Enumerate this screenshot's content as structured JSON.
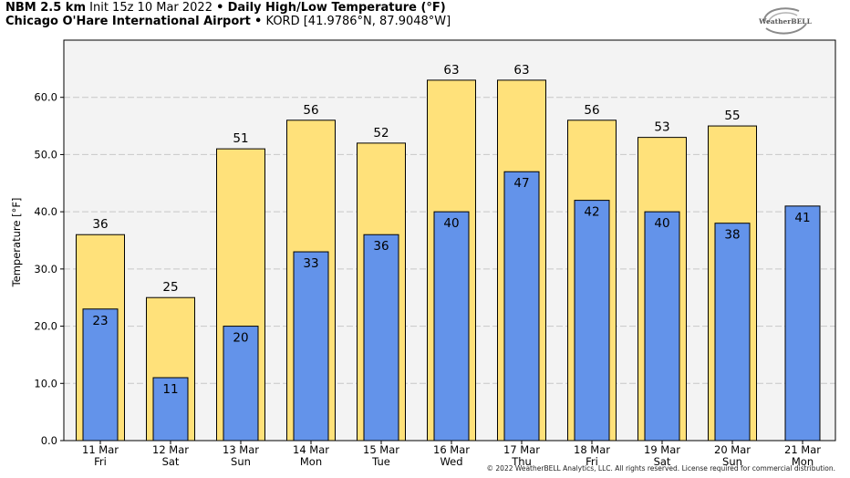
{
  "header": {
    "line1_model": "NBM 2.5 km",
    "line1_init": "Init 15z 10 Mar 2022",
    "line1_sep": "•",
    "line1_product": "Daily High/Low Temperature (°F)",
    "line2_station": "Chicago O'Hare International Airport",
    "line2_sep": "•",
    "line2_coords": "KORD [41.9786°N, 87.9048°W]"
  },
  "logo": {
    "text": "WeatherBELL"
  },
  "copyright": "© 2022 WeatherBELL Analytics, LLC. All rights reserved. License required for commercial distribution.",
  "colors": {
    "high": "#ffe17a",
    "low": "#6393ea",
    "grid": "#c8c8c8",
    "plot_bg": "#f3f3f3"
  },
  "chart_data": {
    "type": "bar",
    "ylabel": "Temperature [°F]",
    "ylim": [
      0,
      70
    ],
    "yticks": [
      "0.0",
      "10.0",
      "20.0",
      "30.0",
      "40.0",
      "50.0",
      "60.0"
    ],
    "ytick_values": [
      0,
      10,
      20,
      30,
      40,
      50,
      60
    ],
    "grid": true,
    "categories": [
      [
        "11 Mar",
        "Fri"
      ],
      [
        "12 Mar",
        "Sat"
      ],
      [
        "13 Mar",
        "Sun"
      ],
      [
        "14 Mar",
        "Mon"
      ],
      [
        "15 Mar",
        "Tue"
      ],
      [
        "16 Mar",
        "Wed"
      ],
      [
        "17 Mar",
        "Thu"
      ],
      [
        "18 Mar",
        "Fri"
      ],
      [
        "19 Mar",
        "Sat"
      ],
      [
        "20 Mar",
        "Sun"
      ],
      [
        "21 Mar",
        "Mon"
      ]
    ],
    "series": [
      {
        "values": [
          36,
          25,
          51,
          56,
          52,
          63,
          63,
          56,
          53,
          55,
          null
        ],
        "labels": [
          "36",
          "25",
          "51",
          "56",
          "52",
          "63",
          "63",
          "56",
          "53",
          "55",
          ""
        ]
      },
      {
        "values": [
          23,
          11,
          20,
          33,
          36,
          40,
          47,
          42,
          40,
          38,
          41
        ],
        "labels": [
          "23",
          "11",
          "20",
          "33",
          "36",
          "40",
          "47",
          "42",
          "40",
          "38",
          "41"
        ]
      }
    ]
  }
}
